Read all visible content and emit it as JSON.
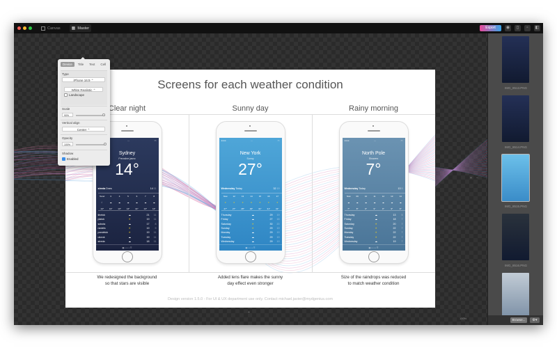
{
  "titlebar": {
    "canvas_label": "Canvas",
    "master_label": "Master",
    "export_label": "Export"
  },
  "artboard": {
    "title": "Screens for each weather condition",
    "footer": "Design version 1.5.0 - For UI & UX department use only. Contact michael.javier@mydgenius.com",
    "columns": [
      {
        "title": "Clear night",
        "caption1": "We redesigned the background",
        "caption2": "so that stars are visible"
      },
      {
        "title": "Sunny day",
        "caption1": "Added lens flare makes the sunny",
        "caption2": "day effect even stronger"
      },
      {
        "title": "Rainy morning",
        "caption1": "Size of the raindrops was reduced",
        "caption2": "to match weather condition"
      }
    ]
  },
  "phones": [
    {
      "city": "Sydney",
      "condition": "Prevažne jasno",
      "temp": "14°",
      "day": "streda",
      "today": "Dnes",
      "hi": "14",
      "lo": "11",
      "bg": [
        "#2c3a5e",
        "#1b2340"
      ],
      "hours": [
        [
          "Teraz",
          "☾",
          "14°"
        ],
        [
          "3",
          "☁",
          "13°"
        ],
        [
          "4",
          "☁",
          "13°"
        ],
        [
          "5",
          "☁",
          "14°"
        ],
        [
          "6",
          "☁",
          "14°"
        ],
        [
          "7",
          "☁",
          "13°"
        ],
        [
          "8",
          "☁",
          "14°"
        ]
      ],
      "days": [
        [
          "štvrtok",
          "☁",
          "21",
          "11"
        ],
        [
          "piatok",
          "☀",
          "19",
          "11"
        ],
        [
          "sobota",
          "☁",
          "17",
          "8"
        ],
        [
          "nedeľa",
          "☀",
          "19",
          "9"
        ],
        [
          "pondelok",
          "☀",
          "19",
          "11"
        ],
        [
          "utorok",
          "☁",
          "19",
          "11"
        ],
        [
          "streda",
          "☁",
          "18",
          "11"
        ]
      ]
    },
    {
      "city": "New York",
      "condition": "Sunny",
      "temp": "27°",
      "day": "Wednesday",
      "today": "Today",
      "hi": "32",
      "lo": "19",
      "bg": [
        "#4fa6d8",
        "#2f86c4"
      ],
      "hours": [
        [
          "Now",
          "☀",
          "27°"
        ],
        [
          "12",
          "☀",
          "27°"
        ],
        [
          "13",
          "☀",
          "28°"
        ],
        [
          "14",
          "☀",
          "29°"
        ],
        [
          "15",
          "☀",
          "31°"
        ],
        [
          "16",
          "☀",
          "31°"
        ],
        [
          "17",
          "☀",
          "31°"
        ]
      ],
      "days": [
        [
          "Thursday",
          "☁",
          "29",
          "19"
        ],
        [
          "Friday",
          "☁",
          "27",
          "18"
        ],
        [
          "Saturday",
          "☀",
          "30",
          "20"
        ],
        [
          "Sunday",
          "☀",
          "29",
          "19"
        ],
        [
          "Monday",
          "☁",
          "29",
          "19"
        ],
        [
          "Tuesday",
          "☁",
          "29",
          "19"
        ],
        [
          "Wednesday",
          "☁",
          "29",
          "19"
        ]
      ]
    },
    {
      "city": "North Pole",
      "condition": "Showers",
      "temp": "7°",
      "day": "Wednesday",
      "today": "Today",
      "hi": "13",
      "lo": "5",
      "bg": [
        "#6b93b2",
        "#4a7598"
      ],
      "hours": [
        [
          "Now",
          "☁",
          "7°"
        ],
        [
          "09",
          "☁",
          "8°"
        ],
        [
          "10",
          "☁",
          "9°"
        ],
        [
          "11",
          "☁",
          "9°"
        ],
        [
          "12",
          "☁",
          "9°"
        ],
        [
          "13",
          "☁",
          "9°"
        ],
        [
          "14",
          "☁",
          "9°"
        ]
      ],
      "days": [
        [
          "Thursday",
          "☁",
          "13",
          "5"
        ],
        [
          "Friday",
          "☁",
          "18",
          "7"
        ],
        [
          "Saturday",
          "☀",
          "20",
          "7"
        ],
        [
          "Sunday",
          "☀",
          "22",
          "7"
        ],
        [
          "Monday",
          "☀",
          "22",
          "7"
        ],
        [
          "Tuesday",
          "☀",
          "22",
          "7"
        ],
        [
          "Wednesday",
          "☁",
          "19",
          "7"
        ]
      ]
    }
  ],
  "popover": {
    "tabs": [
      "Device",
      "Title",
      "Text",
      "Cell"
    ],
    "active_tab": "Device",
    "type_label": "Type",
    "device": "iPhone 16:9",
    "style": "White Realistic",
    "landscape_label": "Landscape",
    "landscape": false,
    "scale_label": "Scale",
    "scale_value": "90%",
    "scale": 0.9,
    "valign_label": "Vertical align",
    "valign": "Center",
    "opacity_label": "Opacity",
    "opacity_value": "100%",
    "opacity": 1.0,
    "shadow_label": "Shadow",
    "shadow_enabled_label": "Enabled",
    "shadow_enabled": true
  },
  "sidebar": {
    "thumbnails": [
      {
        "label": "IMG_8513.PNG",
        "bg": "#243056"
      },
      {
        "label": "IMG_8514.PNG",
        "bg": "#243056"
      },
      {
        "label": "IMG_8515.PNG",
        "bg": "#4aa4da"
      },
      {
        "label": "IMG_8516.PNG",
        "bg": "#2a323c"
      },
      {
        "label": "",
        "bg": "#9aa8b8"
      }
    ],
    "browse_label": "Browse..."
  },
  "zoom": {
    "value": "100%"
  },
  "colors": {
    "accent_start": "#e84a9a",
    "accent_end": "#3aa5e8",
    "canvas": "#2a2a2a",
    "sidebar": "#4a4a4a"
  }
}
